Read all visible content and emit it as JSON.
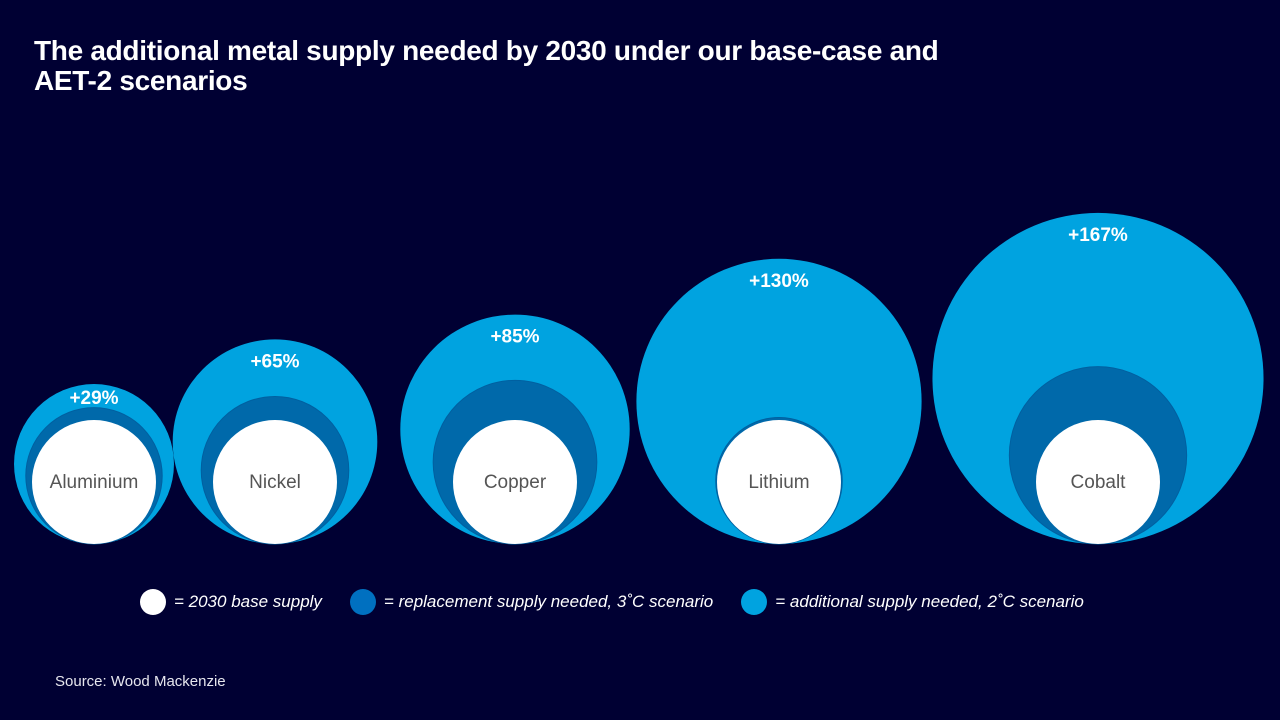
{
  "title": "The additional metal supply needed by 2030 under our base-case and AET-2 scenarios",
  "source": "Source: Wood Mackenzie",
  "colors": {
    "background": "#000033",
    "base": "#ffffff",
    "replacement": "#0069aa",
    "additional": "#00a3e0",
    "label_text": "#555555"
  },
  "chart_data": {
    "type": "nested-bubble",
    "title": "The additional metal supply needed by 2030 under our base-case and AET-2 scenarios",
    "categories": [
      "Aluminium",
      "Nickel",
      "Copper",
      "Lithium",
      "Cobalt"
    ],
    "additional_labels": [
      "+29%",
      "+65%",
      "+85%",
      "+130%",
      "+167%"
    ],
    "series": [
      {
        "name": "2030 base supply",
        "values": [
          100,
          100,
          100,
          100,
          100
        ]
      },
      {
        "name": "replacement supply needed, 3˚C scenario",
        "values": [
          110,
          119,
          132,
          102,
          143
        ]
      },
      {
        "name": "additional supply needed, 2˚C scenario",
        "values": [
          129,
          165,
          185,
          230,
          267
        ]
      }
    ],
    "legend": {
      "placement": "bottom",
      "items": [
        "= 2030 base supply",
        "= replacement supply needed, 3˚C scenario",
        "= additional supply needed, 2˚C scenario"
      ]
    }
  }
}
